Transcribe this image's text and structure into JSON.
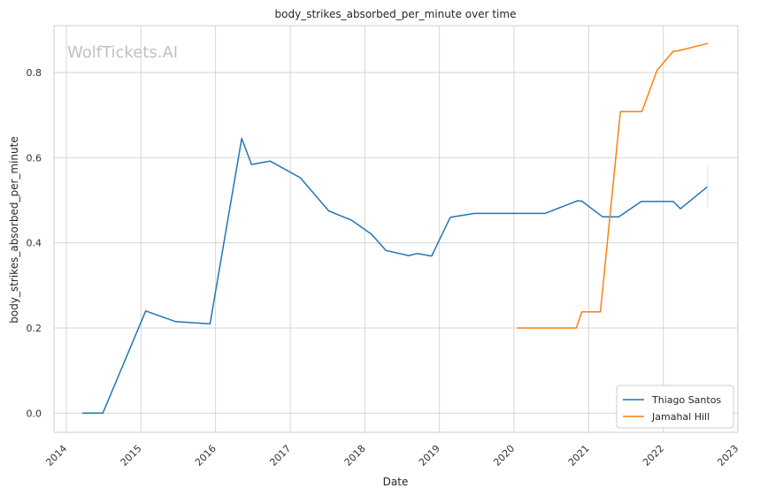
{
  "chart_data": {
    "type": "line",
    "title": "body_strikes_absorbed_per_minute over time",
    "xlabel": "Date",
    "ylabel": "body_strikes_absorbed_per_minute",
    "watermark": "WolfTickets.AI",
    "xlim": [
      "2013-11-01",
      "2023-01-01"
    ],
    "ylim": [
      -0.045,
      0.91
    ],
    "x_ticks": [
      "2014",
      "2015",
      "2016",
      "2017",
      "2018",
      "2019",
      "2020",
      "2021",
      "2022",
      "2023"
    ],
    "y_ticks": [
      "0.0",
      "0.2",
      "0.4",
      "0.6",
      "0.8"
    ],
    "grid": true,
    "legend_position": "bottom-right",
    "series": [
      {
        "name": "Thiago Santos",
        "color": "#1f77b4",
        "points": [
          [
            "2014-03-22",
            0.0
          ],
          [
            "2014-06-28",
            0.0
          ],
          [
            "2015-01-24",
            0.24
          ],
          [
            "2015-06-20",
            0.215
          ],
          [
            "2015-12-05",
            0.21
          ],
          [
            "2016-05-08",
            0.645
          ],
          [
            "2016-06-25",
            0.584
          ],
          [
            "2016-09-24",
            0.592
          ],
          [
            "2017-02-19",
            0.553
          ],
          [
            "2017-07-08",
            0.475
          ],
          [
            "2017-10-28",
            0.453
          ],
          [
            "2018-02-03",
            0.42
          ],
          [
            "2018-04-14",
            0.382
          ],
          [
            "2018-08-04",
            0.37
          ],
          [
            "2018-09-15",
            0.375
          ],
          [
            "2018-11-24",
            0.369
          ],
          [
            "2019-02-23",
            0.46
          ],
          [
            "2019-06-22",
            0.469
          ],
          [
            "2020-06-01",
            0.469
          ],
          [
            "2020-11-08",
            0.499
          ],
          [
            "2020-11-28",
            0.498
          ],
          [
            "2021-03-10",
            0.461
          ],
          [
            "2021-05-28",
            0.461
          ],
          [
            "2021-09-15",
            0.497
          ],
          [
            "2022-02-19",
            0.497
          ],
          [
            "2022-03-26",
            0.48
          ],
          [
            "2022-08-06",
            0.532
          ]
        ]
      },
      {
        "name": "Jamahal Hill",
        "color": "#ff7f0e",
        "points": [
          [
            "2020-01-18",
            0.2
          ],
          [
            "2020-11-01",
            0.2
          ],
          [
            "2020-11-28",
            0.238
          ],
          [
            "2021-02-27",
            0.238
          ],
          [
            "2021-06-05",
            0.708
          ],
          [
            "2021-09-18",
            0.708
          ],
          [
            "2021-12-01",
            0.805
          ],
          [
            "2022-02-19",
            0.85
          ],
          [
            "2022-03-07",
            0.85
          ],
          [
            "2022-08-06",
            0.868
          ]
        ]
      }
    ]
  }
}
